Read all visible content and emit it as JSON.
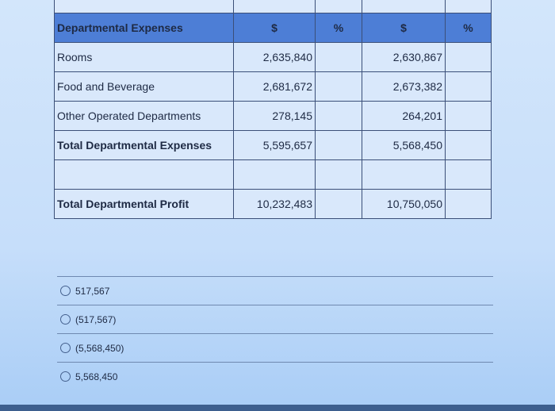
{
  "table": {
    "header": [
      "Departmental Expenses",
      "$",
      "%",
      "$",
      "%"
    ],
    "rows": [
      {
        "label": "Rooms",
        "v1": "2,635,840",
        "v2": "2,630,867"
      },
      {
        "label": "Food and Beverage",
        "v1": "2,681,672",
        "v2": "2,673,382"
      },
      {
        "label": "Other Operated Departments",
        "v1": "278,145",
        "v2": "264,201"
      },
      {
        "label": "Total Departmental Expenses",
        "v1": "5,595,657",
        "v2": "5,568,450"
      },
      {
        "label": "",
        "v1": "",
        "v2": ""
      },
      {
        "label": "Total Departmental Profit",
        "v1": "10,232,483",
        "v2": "10,750,050"
      }
    ]
  },
  "options": [
    "517,567",
    "(517,567)",
    "(5,568,450)",
    "5,568,450"
  ]
}
